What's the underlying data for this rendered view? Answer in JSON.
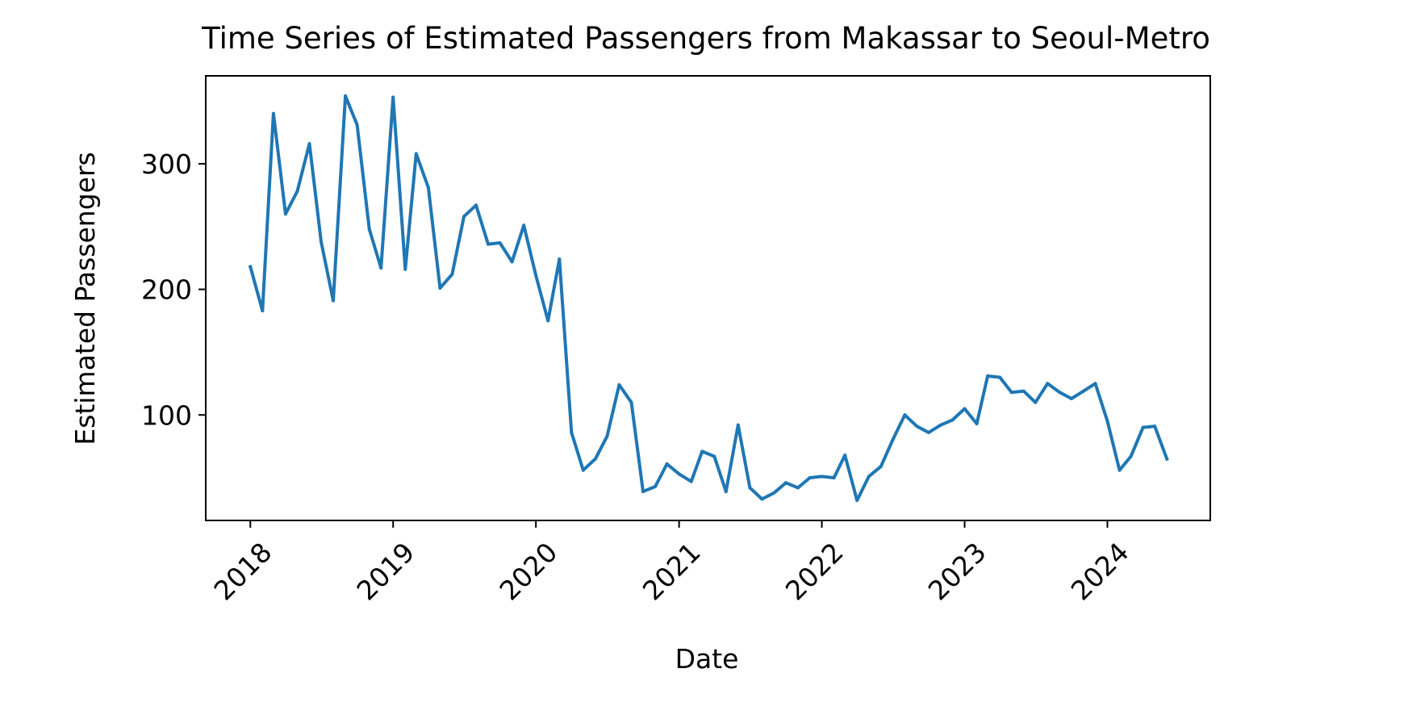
{
  "chart_data": {
    "type": "line",
    "title": "Time Series of Estimated Passengers from Makassar to Seoul-Metro",
    "xlabel": "Date",
    "ylabel": "Estimated Passengers",
    "x_ticks": [
      "2018",
      "2019",
      "2020",
      "2021",
      "2022",
      "2023",
      "2024"
    ],
    "y_ticks": [
      100,
      200,
      300
    ],
    "xlim": [
      "2017-09-09",
      "2024-09-20"
    ],
    "ylim": [
      16,
      370
    ],
    "grid": false,
    "legend": "none",
    "series": [
      {
        "color": "#1f77b4",
        "x": [
          "2018-01-01",
          "2018-02-01",
          "2018-03-01",
          "2018-04-01",
          "2018-05-01",
          "2018-06-01",
          "2018-07-01",
          "2018-08-01",
          "2018-09-01",
          "2018-10-01",
          "2018-11-01",
          "2018-12-01",
          "2019-01-01",
          "2019-02-01",
          "2019-03-01",
          "2019-04-01",
          "2019-05-01",
          "2019-06-01",
          "2019-07-01",
          "2019-08-01",
          "2019-09-01",
          "2019-10-01",
          "2019-11-01",
          "2019-12-01",
          "2020-01-01",
          "2020-02-01",
          "2020-03-01",
          "2020-04-01",
          "2020-05-01",
          "2020-06-01",
          "2020-07-01",
          "2020-08-01",
          "2020-09-01",
          "2020-10-01",
          "2020-11-01",
          "2020-12-01",
          "2021-01-01",
          "2021-02-01",
          "2021-03-01",
          "2021-04-01",
          "2021-05-01",
          "2021-06-01",
          "2021-07-01",
          "2021-08-01",
          "2021-09-01",
          "2021-10-01",
          "2021-11-01",
          "2021-12-01",
          "2022-01-01",
          "2022-02-01",
          "2022-03-01",
          "2022-04-01",
          "2022-05-01",
          "2022-06-01",
          "2022-07-01",
          "2022-08-01",
          "2022-09-01",
          "2022-10-01",
          "2022-11-01",
          "2022-12-01",
          "2023-01-01",
          "2023-02-01",
          "2023-03-01",
          "2023-04-01",
          "2023-05-01",
          "2023-06-01",
          "2023-07-01",
          "2023-08-01",
          "2023-09-01",
          "2023-10-01",
          "2023-11-01",
          "2023-12-01",
          "2024-01-01",
          "2024-02-01",
          "2024-03-01",
          "2024-04-01",
          "2024-05-01",
          "2024-06-01"
        ],
        "values": [
          218,
          183,
          340,
          260,
          278,
          316,
          238,
          191,
          354,
          331,
          248,
          217,
          353,
          216,
          308,
          281,
          201,
          212,
          258,
          267,
          236,
          237,
          222,
          251,
          211,
          175,
          224,
          86,
          56,
          65,
          83,
          124,
          110,
          39,
          43,
          61,
          53,
          47,
          71,
          67,
          39,
          92,
          42,
          33,
          38,
          46,
          42,
          50,
          51,
          50,
          68,
          32,
          51,
          59,
          80,
          100,
          91,
          86,
          92,
          96,
          105,
          93,
          131,
          130,
          118,
          119,
          110,
          125,
          118,
          113,
          119,
          125,
          95,
          56,
          67,
          90,
          91,
          65
        ]
      }
    ]
  }
}
